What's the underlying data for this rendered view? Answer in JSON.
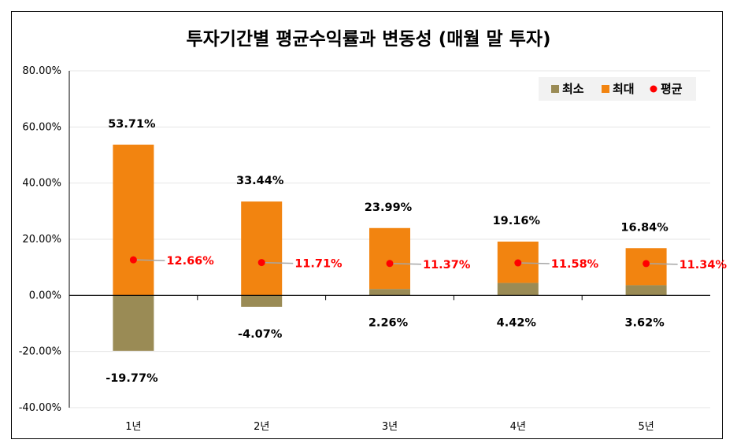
{
  "chart_data": {
    "type": "bar",
    "title": "투자기간별 평균수익률과 변동성 (매월 말 투자)",
    "categories": [
      "1년",
      "2년",
      "3년",
      "4년",
      "5년"
    ],
    "series": [
      {
        "name": "최소",
        "values": [
          -19.77,
          -4.07,
          2.26,
          4.42,
          3.62
        ],
        "labels": [
          "-19.77%",
          "-4.07%",
          "2.26%",
          "4.42%",
          "3.62%"
        ]
      },
      {
        "name": "최대",
        "values": [
          53.71,
          33.44,
          23.99,
          19.16,
          16.84
        ],
        "labels": [
          "53.71%",
          "33.44%",
          "23.99%",
          "19.16%",
          "16.84%"
        ]
      },
      {
        "name": "평균",
        "values": [
          12.66,
          11.71,
          11.37,
          11.58,
          11.34
        ],
        "labels": [
          "12.66%",
          "11.71%",
          "11.37%",
          "11.58%",
          "11.34%"
        ]
      }
    ],
    "ylim": [
      -40,
      80
    ],
    "yticks": [
      80,
      60,
      40,
      20,
      0,
      -20,
      -40
    ],
    "ytick_labels": [
      "80.00%",
      "60.00%",
      "40.00%",
      "20.00%",
      "0.00%",
      "-20.00%",
      "-40.00%"
    ],
    "grid": true,
    "legend": "top-right",
    "colors": {
      "min": "#9a8b55",
      "max": "#f28410",
      "avg": "#ff0000"
    }
  }
}
